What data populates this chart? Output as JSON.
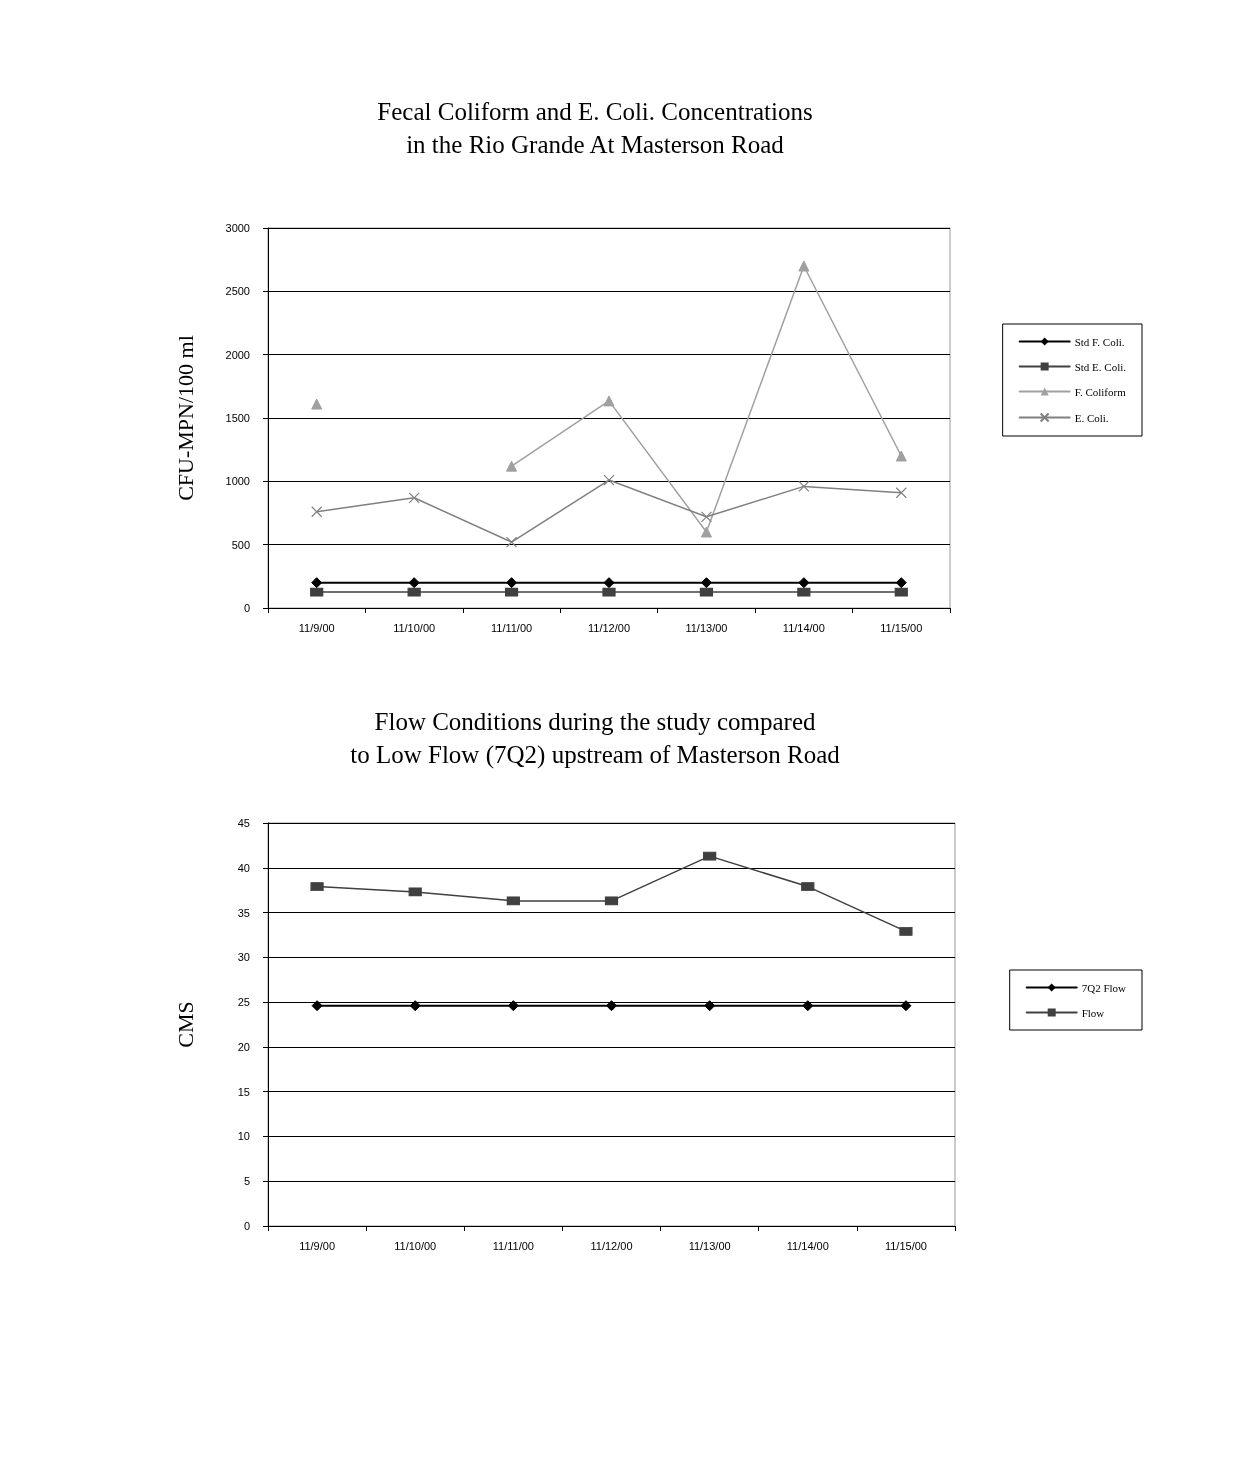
{
  "chart_data": [
    {
      "type": "line",
      "title": "Fecal Coliform and E. Coli. Concentrations\nin the Rio Grande At Masterson Road",
      "ylabel": "CFU-MPN/100 ml",
      "categories": [
        "11/9/00",
        "11/10/00",
        "11/11/00",
        "11/12/00",
        "11/13/00",
        "11/14/00",
        "11/15/00"
      ],
      "series": [
        {
          "name": "Std F. Coli.",
          "color": "#000000",
          "marker": "diamond",
          "values": [
            200,
            200,
            200,
            200,
            200,
            200,
            200
          ]
        },
        {
          "name": "Std E. Coli.",
          "color": "#404040",
          "marker": "square",
          "values": [
            126,
            126,
            126,
            126,
            126,
            126,
            126
          ]
        },
        {
          "name": "F. Coliform",
          "color": "#a0a0a0",
          "marker": "triangle",
          "values": [
            1610,
            null,
            1120,
            1635,
            600,
            2700,
            1200
          ]
        },
        {
          "name": "E. Coli.",
          "color": "#808080",
          "marker": "cross",
          "values": [
            760,
            870,
            520,
            1010,
            720,
            960,
            910
          ]
        }
      ],
      "ylim": [
        0,
        3000
      ],
      "yticks": [
        0,
        500,
        1000,
        1500,
        2000,
        2500,
        3000
      ],
      "grid": "y",
      "legend": "right"
    },
    {
      "type": "line",
      "title": "Flow Conditions during the study compared\nto Low Flow (7Q2) upstream of Masterson Road",
      "ylabel": "CMS",
      "categories": [
        "11/9/00",
        "11/10/00",
        "11/11/00",
        "11/12/00",
        "11/13/00",
        "11/14/00",
        "11/15/00"
      ],
      "series": [
        {
          "name": "7Q2 Flow",
          "color": "#000000",
          "marker": "diamond",
          "values": [
            24.6,
            24.6,
            24.6,
            24.6,
            24.6,
            24.6,
            24.6
          ]
        },
        {
          "name": "Flow",
          "color": "#404040",
          "marker": "square",
          "values": [
            37.9,
            37.3,
            36.3,
            36.3,
            41.3,
            37.9,
            32.9
          ]
        }
      ],
      "ylim": [
        0,
        45
      ],
      "yticks": [
        0,
        5,
        10,
        15,
        20,
        25,
        30,
        35,
        40,
        45
      ],
      "grid": "y",
      "legend": "right"
    }
  ]
}
